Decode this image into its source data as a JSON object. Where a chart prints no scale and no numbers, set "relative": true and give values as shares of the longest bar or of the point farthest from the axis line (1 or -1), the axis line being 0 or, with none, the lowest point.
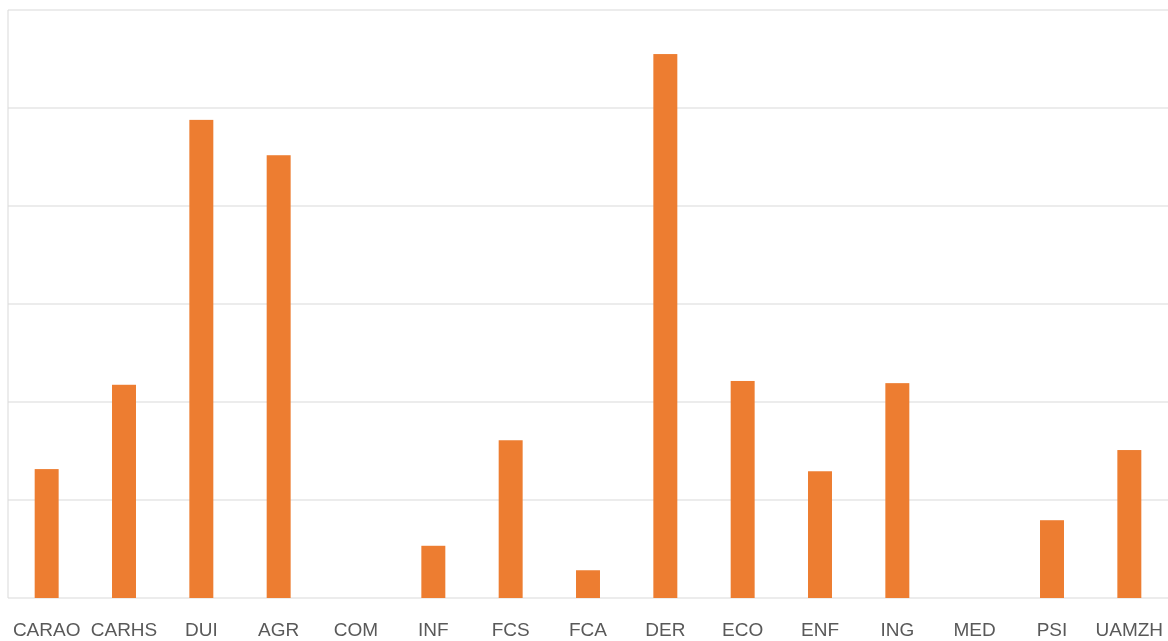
{
  "chart_data": {
    "type": "bar",
    "relative": true,
    "grid": "y",
    "color": "#ed7d31",
    "categories": [
      "CARAO",
      "CARHS",
      "DUI",
      "AGR",
      "COM",
      "INF",
      "FCS",
      "FCA",
      "DER",
      "ECO",
      "ENF",
      "ING",
      "MED",
      "PSI",
      "UAMZH"
    ],
    "values": [
      0.237,
      0.392,
      0.879,
      0.814,
      0,
      0.096,
      0.29,
      0.051,
      1,
      0.399,
      0.233,
      0.395,
      0,
      0.143,
      0.272
    ]
  }
}
